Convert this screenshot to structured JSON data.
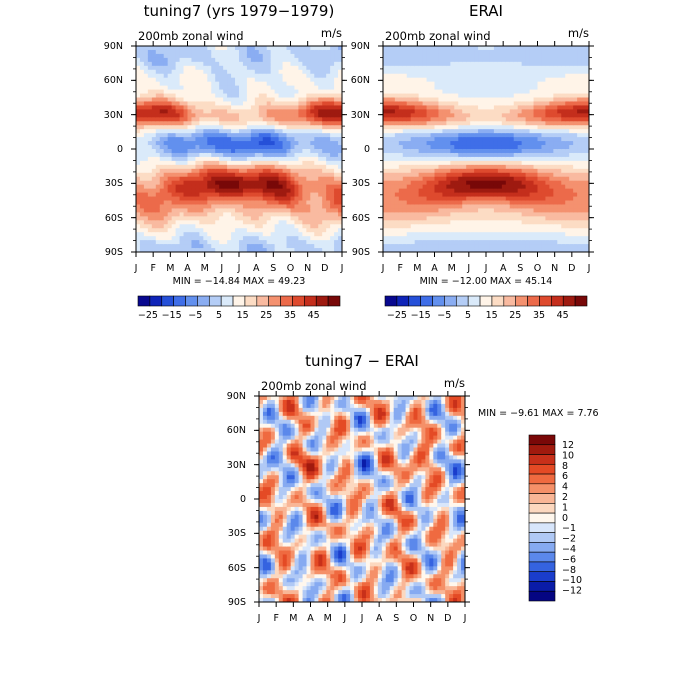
{
  "palettes": {
    "main": [
      "#08088f",
      "#0f24b8",
      "#2550d8",
      "#3f6ee8",
      "#6290ee",
      "#8aadf2",
      "#b4cdf6",
      "#daeafa",
      "#fff4e8",
      "#fcdcc4",
      "#f9baa0",
      "#f4916f",
      "#ec6a4a",
      "#de4a2e",
      "#c42e1c",
      "#9e1a10",
      "#780808"
    ],
    "diff": [
      "#050582",
      "#0a1ca8",
      "#1a3dcc",
      "#3563e0",
      "#5b88eb",
      "#86aaf1",
      "#b0c9f5",
      "#d8e6fb",
      "#fff7ed",
      "#fcd8bf",
      "#f9b696",
      "#f59068",
      "#ef6a40",
      "#e44a25",
      "#c8301a",
      "#a11a0e",
      "#7a0808"
    ]
  },
  "chart_data": [
    {
      "id": "tuning7",
      "type": "heatmap",
      "title": "tuning7 (yrs 1979−1979)",
      "subtitle_left": "200mb  zonal wind",
      "subtitle_right": "m/s",
      "x_ticks": [
        "J",
        "F",
        "M",
        "A",
        "M",
        "J",
        "J",
        "A",
        "S",
        "O",
        "N",
        "D",
        "J"
      ],
      "y_ticks": [
        "90N",
        "60N",
        "30N",
        "0",
        "30S",
        "60S",
        "90S"
      ],
      "ylim": [
        -90,
        90
      ],
      "stats": "MIN = −14.84  MAX =   49.23",
      "colorbar_labels": [
        "−25",
        "−15",
        "−5",
        "5",
        "15",
        "25",
        "35",
        "45"
      ],
      "levels": [
        -25,
        -20,
        -15,
        -10,
        -5,
        0,
        5,
        10,
        15,
        20,
        25,
        30,
        35,
        40,
        45,
        50
      ],
      "palette": "main"
    },
    {
      "id": "erai",
      "type": "heatmap",
      "title": "ERAI",
      "subtitle_left": "200mb  zonal wind",
      "subtitle_right": "m/s",
      "x_ticks": [
        "J",
        "F",
        "M",
        "A",
        "M",
        "J",
        "J",
        "A",
        "S",
        "O",
        "N",
        "D",
        "J"
      ],
      "y_ticks": [
        "90N",
        "60N",
        "30N",
        "0",
        "30S",
        "60S",
        "90S"
      ],
      "ylim": [
        -90,
        90
      ],
      "stats": "MIN = −12.00  MAX =   45.14",
      "colorbar_labels": [
        "−25",
        "−15",
        "−5",
        "5",
        "15",
        "25",
        "35",
        "45"
      ],
      "levels": [
        -25,
        -20,
        -15,
        -10,
        -5,
        0,
        5,
        10,
        15,
        20,
        25,
        30,
        35,
        40,
        45,
        50
      ],
      "palette": "main"
    },
    {
      "id": "diff",
      "type": "heatmap",
      "title": "tuning7 − ERAI",
      "subtitle_left": "200mb  zonal wind",
      "subtitle_right": "m/s",
      "x_ticks": [
        "J",
        "F",
        "M",
        "A",
        "M",
        "J",
        "J",
        "A",
        "S",
        "O",
        "N",
        "D",
        "J"
      ],
      "y_ticks": [
        "90N",
        "60N",
        "30N",
        "0",
        "30S",
        "60S",
        "90S"
      ],
      "ylim": [
        -90,
        90
      ],
      "stats": "MIN =   −9.61  MAX =    7.76",
      "colorbar_labels": [
        "12",
        "10",
        "8",
        "6",
        "4",
        "2",
        "1",
        "0",
        "−1",
        "−2",
        "−4",
        "−6",
        "−8",
        "−10",
        "−12"
      ],
      "levels": [
        -14,
        -12,
        -10,
        -8,
        -6,
        -4,
        -2,
        -1,
        0,
        1,
        2,
        4,
        6,
        8,
        10,
        12,
        14
      ],
      "palette": "diff"
    }
  ]
}
